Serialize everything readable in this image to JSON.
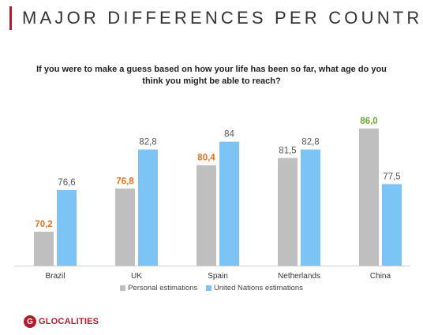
{
  "page": {
    "title": "MAJOR DIFFERENCES PER COUNTRY",
    "question": "If you were to make a guess based on how your life has been so far, what age do you think you might be able to reach?",
    "logo_text": "GLOCALITIES",
    "logo_mark": "G",
    "brand_color": "#b01d2b"
  },
  "chart_data": {
    "type": "bar",
    "categories": [
      "Brazil",
      "UK",
      "Spain",
      "Netherlands",
      "China"
    ],
    "ylim": [
      65,
      90
    ],
    "grid": false,
    "legend_position": "bottom",
    "series": [
      {
        "name": "Personal estimations",
        "color": "#bfbfbf",
        "values": [
          70.2,
          76.8,
          80.4,
          81.5,
          86.0
        ],
        "labels": [
          "70,2",
          "76,8",
          "80,4",
          "81,5",
          "86,0"
        ],
        "label_colors": [
          "#e8701e",
          "#e8701e",
          "#e8701e",
          "#555555",
          "#6aa532"
        ]
      },
      {
        "name": "United Nations estimations",
        "color": "#7cc4f5",
        "values": [
          76.6,
          82.8,
          84,
          82.8,
          77.5
        ],
        "labels": [
          "76,6",
          "82,8",
          "84",
          "82,8",
          "77,5"
        ],
        "label_colors": [
          "#555555",
          "#555555",
          "#555555",
          "#555555",
          "#555555"
        ]
      }
    ]
  }
}
